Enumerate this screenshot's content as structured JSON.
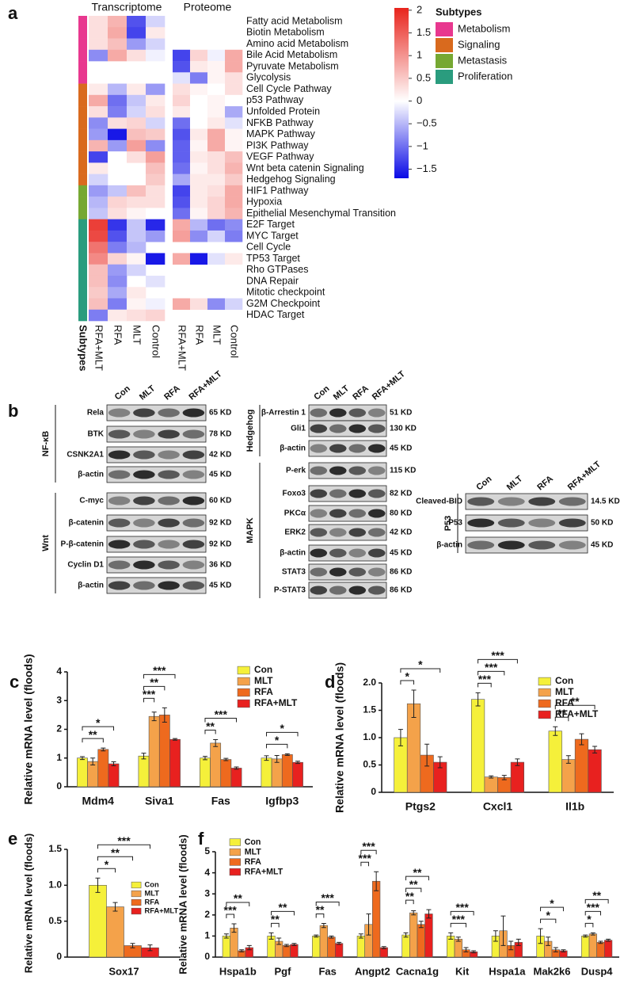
{
  "panel_labels": [
    "a",
    "b",
    "c",
    "d",
    "e",
    "f"
  ],
  "chart_data": [
    {
      "type": "heatmap",
      "column_groups": [
        "Transcriptome",
        "Proteome"
      ],
      "columns": [
        "RFA+MLT",
        "RFA",
        "MLT",
        "Control",
        "RFA+MLT",
        "RFA",
        "MLT",
        "Control"
      ],
      "subtype_label": "Subtypes",
      "rows": [
        "Fatty acid Metabolism",
        "Biotin Metabolism",
        "Amino acid Metabolism",
        "Bile Acid Metabolism",
        "Pyruvate Metabolism",
        "Glycolysis",
        "Cell Cycle Pathway",
        "p53 Pathway",
        "Unfolded Protein",
        "NFKB Pathway",
        "MAPK Pathway",
        "PI3K Pathway",
        "VEGF Pathway",
        "Wnt beta catenin Signaling",
        "Hedgehog Signaling",
        "HIF1 Pathway",
        "Hypoxia",
        "Epithelial Mesenchymal Transition",
        "E2F Target",
        "MYC Target",
        "Cell Cycle",
        "TP53 Target",
        "Rho GTPases",
        "DNA Repair",
        "Mitotic checkpoint",
        "G2M Checkpoint",
        "HDAC Target"
      ],
      "row_subtypes": [
        "Metabolism",
        "Metabolism",
        "Metabolism",
        "Metabolism",
        "Metabolism",
        "Metabolism",
        "Signaling",
        "Signaling",
        "Signaling",
        "Signaling",
        "Signaling",
        "Signaling",
        "Signaling",
        "Signaling",
        "Signaling",
        "Metastasis",
        "Metastasis",
        "Metastasis",
        "Proliferation",
        "Proliferation",
        "Proliferation",
        "Proliferation",
        "Proliferation",
        "Proliferation",
        "Proliferation",
        "Proliferation",
        "Proliferation"
      ],
      "values": [
        [
          0.3,
          0.7,
          -1.2,
          -0.3,
          null,
          null,
          null,
          null
        ],
        [
          0.3,
          0.8,
          -1.3,
          0.2,
          null,
          null,
          null,
          null
        ],
        [
          0.3,
          0.6,
          -0.7,
          -0.3,
          null,
          null,
          null,
          null
        ],
        [
          -0.8,
          0.8,
          0.3,
          -0.1,
          -1.3,
          0.4,
          -0.1,
          0.8
        ],
        [
          null,
          null,
          null,
          null,
          -1.2,
          0.2,
          0.1,
          0.8
        ],
        [
          null,
          null,
          null,
          null,
          -0.2,
          -0.9,
          0.1,
          0.3
        ],
        [
          0.2,
          -0.5,
          0.2,
          -0.7,
          0.3,
          0.1,
          0,
          0.3
        ],
        [
          0.8,
          -1.0,
          -0.4,
          0.2,
          0.4,
          0,
          0.1,
          0
        ],
        [
          0.3,
          -0.9,
          -0.3,
          0.3,
          0.2,
          0,
          0.1,
          -0.6
        ],
        [
          -0.8,
          0.3,
          0.4,
          -0.3,
          -1.0,
          0,
          0.2,
          -0.2
        ],
        [
          -0.7,
          -1.6,
          0.6,
          0.5,
          -1.2,
          0.2,
          0.8,
          0.1
        ],
        [
          0.7,
          -0.7,
          0.9,
          -0.8,
          -1.1,
          0.1,
          0.8,
          0.1
        ],
        [
          -1.3,
          0,
          0.3,
          0.9,
          -1.1,
          0.2,
          0.3,
          0.6
        ],
        [
          0.2,
          null,
          null,
          0.6,
          -1.0,
          0.1,
          0.3,
          0.7
        ],
        [
          -0.3,
          null,
          null,
          0.5,
          -0.6,
          0.2,
          0.2,
          0.5
        ],
        [
          -0.7,
          -0.4,
          0.6,
          0.3,
          -1.3,
          0.2,
          0.3,
          0.8
        ],
        [
          -0.5,
          0.4,
          0.3,
          0.3,
          -1.2,
          0.2,
          0.4,
          0.8
        ],
        [
          -0.4,
          0.3,
          0.1,
          0,
          -1.0,
          0.1,
          0.4,
          0.7
        ],
        [
          1.8,
          -1.4,
          -0.4,
          -1.5,
          0.8,
          -0.5,
          -1.0,
          -0.8
        ],
        [
          1.7,
          -1.2,
          -0.4,
          -0.7,
          0.9,
          -0.8,
          -0.3,
          -0.9
        ],
        [
          1.3,
          -0.9,
          -0.5,
          null,
          null,
          null,
          null,
          null
        ],
        [
          1.1,
          0.4,
          0.1,
          -1.6,
          0.8,
          -1.6,
          -0.2,
          0.2
        ],
        [
          0.6,
          -0.7,
          -0.3,
          null,
          null,
          null,
          null,
          null
        ],
        [
          0.6,
          -0.8,
          null,
          -0.2,
          null,
          null,
          null,
          null
        ],
        [
          0.5,
          -0.6,
          0.2,
          null,
          null,
          null,
          null,
          null
        ],
        [
          0.6,
          -0.9,
          0.1,
          -0.1,
          0.8,
          0.3,
          -0.8,
          -0.3
        ],
        [
          -0.9,
          0.2,
          0.3,
          0.4,
          null,
          null,
          null,
          null
        ]
      ],
      "colorbar": {
        "lim": [
          -1.7,
          2.05
        ],
        "colors": [
          "#0a0ae6",
          "#ffffff",
          "#e8241c"
        ],
        "ticks": [
          2,
          1.5,
          1,
          0.5,
          0,
          {
            "value": -0.5,
            "label": "−0.5"
          },
          {
            "value": -1,
            "label": "−1"
          },
          {
            "value": -1.5,
            "label": "−1.5"
          }
        ]
      },
      "subtypes": {
        "title": "Subtypes",
        "names": [
          "Metabolism",
          "Signaling",
          "Metastasis",
          "Proliferation"
        ],
        "colors": [
          "#e8388f",
          "#d96a1e",
          "#76a832",
          "#2a9c7e"
        ]
      }
    },
    {
      "type": "bar",
      "categories": [
        "Mdm4",
        "Siva1",
        "Fas",
        "Igfbp3"
      ],
      "ylabel": "Relative mRNA level (floods)",
      "ylim": [
        0,
        4
      ],
      "yticks": [
        0,
        1,
        2,
        3,
        4
      ],
      "legend": "top-right",
      "series": [
        {
          "name": "Con",
          "color": "#f5f03a",
          "values": [
            1.0,
            1.07,
            1.0,
            1.0
          ],
          "errors": [
            0.05,
            0.1,
            0.06,
            0.08
          ]
        },
        {
          "name": "MLT",
          "color": "#f4a24a",
          "values": [
            0.88,
            2.45,
            1.52,
            0.97
          ],
          "errors": [
            0.12,
            0.15,
            0.12,
            0.12
          ]
        },
        {
          "name": "RFA",
          "color": "#ee6a1e",
          "values": [
            1.3,
            2.5,
            0.95,
            1.12
          ],
          "errors": [
            0.05,
            0.25,
            0.04,
            0.03
          ]
        },
        {
          "name": "RFA+MLT",
          "color": "#e8211f",
          "values": [
            0.8,
            1.65,
            0.65,
            0.85
          ],
          "errors": [
            0.07,
            0.03,
            0.04,
            0.04
          ]
        }
      ],
      "significance": [
        {
          "category": 0,
          "from": 0,
          "to": 2,
          "label": "**"
        },
        {
          "category": 0,
          "from": 0,
          "to": 3,
          "label": "*"
        },
        {
          "category": 1,
          "from": 0,
          "to": 1,
          "label": "***"
        },
        {
          "category": 1,
          "from": 0,
          "to": 2,
          "label": "**"
        },
        {
          "category": 1,
          "from": 0,
          "to": 3,
          "label": "***"
        },
        {
          "category": 2,
          "from": 0,
          "to": 1,
          "label": "**"
        },
        {
          "category": 2,
          "from": 0,
          "to": 3,
          "label": "***"
        },
        {
          "category": 3,
          "from": 0,
          "to": 2,
          "label": "*"
        },
        {
          "category": 3,
          "from": 0,
          "to": 3,
          "label": "*"
        }
      ]
    },
    {
      "type": "bar",
      "categories": [
        "Ptgs2",
        "Cxcl1",
        "Il1b"
      ],
      "ylabel": "Relative mRNA level (floods)",
      "ylim": [
        0,
        2
      ],
      "yticks": [
        0,
        0.5,
        {
          "value": 1,
          "label": "1.0"
        },
        1.5,
        {
          "value": 2,
          "label": "2.0"
        }
      ],
      "legend": "top-right",
      "series": [
        {
          "name": "Con",
          "color": "#f5f03a",
          "values": [
            1.0,
            1.7,
            1.12
          ],
          "errors": [
            0.15,
            0.12,
            0.08
          ]
        },
        {
          "name": "MLT",
          "color": "#f4a24a",
          "values": [
            1.62,
            0.28,
            0.6
          ],
          "errors": [
            0.25,
            0.02,
            0.07
          ]
        },
        {
          "name": "RFA",
          "color": "#ee6a1e",
          "values": [
            0.68,
            0.27,
            0.97
          ],
          "errors": [
            0.2,
            0.04,
            0.1
          ]
        },
        {
          "name": "RFA+MLT",
          "color": "#e8211f",
          "values": [
            0.55,
            0.55,
            0.78
          ],
          "errors": [
            0.1,
            0.06,
            0.06
          ]
        }
      ],
      "significance": [
        {
          "category": 0,
          "from": 0,
          "to": 1,
          "label": "*"
        },
        {
          "category": 0,
          "from": 0,
          "to": 3,
          "label": "*"
        },
        {
          "category": 1,
          "from": 0,
          "to": 1,
          "label": "***"
        },
        {
          "category": 1,
          "from": 0,
          "to": 2,
          "label": "***"
        },
        {
          "category": 1,
          "from": 0,
          "to": 3,
          "label": "***"
        },
        {
          "category": 2,
          "from": 0,
          "to": 1,
          "label": "**"
        },
        {
          "category": 2,
          "from": 0,
          "to": 3,
          "label": "**"
        }
      ]
    },
    {
      "type": "bar",
      "categories": [
        "Sox17"
      ],
      "ylabel": "Relative mRNA level (floods)",
      "ylim": [
        0,
        1.5
      ],
      "yticks": [
        0,
        0.5,
        {
          "value": 1,
          "label": "1.0"
        },
        1.5
      ],
      "legend": "right",
      "series": [
        {
          "name": "Con",
          "color": "#f5f03a",
          "values": [
            1.0
          ],
          "errors": [
            0.1
          ]
        },
        {
          "name": "MLT",
          "color": "#f4a24a",
          "values": [
            0.7
          ],
          "errors": [
            0.06
          ]
        },
        {
          "name": "RFA",
          "color": "#ee6a1e",
          "values": [
            0.16
          ],
          "errors": [
            0.03
          ]
        },
        {
          "name": "RFA+MLT",
          "color": "#e8211f",
          "values": [
            0.13
          ],
          "errors": [
            0.04
          ]
        }
      ],
      "significance": [
        {
          "category": 0,
          "from": 0,
          "to": 1,
          "label": "*"
        },
        {
          "category": 0,
          "from": 0,
          "to": 2,
          "label": "**"
        },
        {
          "category": 0,
          "from": 0,
          "to": 3,
          "label": "***"
        }
      ]
    },
    {
      "type": "bar",
      "categories": [
        "Hspa1b",
        "Pgf",
        "Fas",
        "Angpt2",
        "Cacna1g",
        "Kit",
        "Hspa1a",
        "Mak2k6",
        "Dusp4"
      ],
      "ylabel": "Relative mRNA level (floods)",
      "ylim": [
        0,
        5
      ],
      "yticks": [
        0,
        1,
        2,
        3,
        4,
        5
      ],
      "legend": "top-left",
      "series": [
        {
          "name": "Con",
          "color": "#f5f03a",
          "values": [
            1.0,
            1.0,
            1.0,
            1.0,
            1.05,
            1.0,
            1.0,
            1.0,
            1.0
          ],
          "errors": [
            0.1,
            0.15,
            0.05,
            0.1,
            0.1,
            0.15,
            0.25,
            0.35,
            0.05
          ]
        },
        {
          "name": "MLT",
          "color": "#f4a24a",
          "values": [
            1.38,
            0.75,
            1.5,
            1.55,
            2.1,
            0.85,
            1.25,
            0.75,
            1.1
          ],
          "errors": [
            0.2,
            0.15,
            0.1,
            0.5,
            0.1,
            0.1,
            0.7,
            0.2,
            0.05
          ]
        },
        {
          "name": "RFA",
          "color": "#ee6a1e",
          "values": [
            0.3,
            0.55,
            0.95,
            3.6,
            1.55,
            0.35,
            0.55,
            0.35,
            0.7
          ],
          "errors": [
            0.05,
            0.05,
            0.05,
            0.45,
            0.15,
            0.1,
            0.2,
            0.1,
            0.05
          ]
        },
        {
          "name": "RFA+MLT",
          "color": "#e8211f",
          "values": [
            0.45,
            0.6,
            0.65,
            0.45,
            2.05,
            0.25,
            0.7,
            0.3,
            0.8
          ],
          "errors": [
            0.1,
            0.05,
            0.05,
            0.05,
            0.2,
            0.05,
            0.15,
            0.05,
            0.05
          ]
        }
      ],
      "significance": [
        {
          "category": 0,
          "from": 0,
          "to": 1,
          "label": "***"
        },
        {
          "category": 0,
          "from": 0,
          "to": 3,
          "label": "**"
        },
        {
          "category": 1,
          "from": 0,
          "to": 1,
          "label": "**"
        },
        {
          "category": 1,
          "from": 0,
          "to": 3,
          "label": "**"
        },
        {
          "category": 2,
          "from": 0,
          "to": 1,
          "label": "**"
        },
        {
          "category": 2,
          "from": 0,
          "to": 3,
          "label": "***"
        },
        {
          "category": 3,
          "from": 0,
          "to": 1,
          "label": "***"
        },
        {
          "category": 3,
          "from": 0,
          "to": 2,
          "label": "***"
        },
        {
          "category": 4,
          "from": 0,
          "to": 1,
          "label": "**"
        },
        {
          "category": 4,
          "from": 0,
          "to": 2,
          "label": "**"
        },
        {
          "category": 4,
          "from": 0,
          "to": 3,
          "label": "**"
        },
        {
          "category": 5,
          "from": 0,
          "to": 2,
          "label": "***"
        },
        {
          "category": 5,
          "from": 0,
          "to": 3,
          "label": "***"
        },
        {
          "category": 7,
          "from": 0,
          "to": 2,
          "label": "*"
        },
        {
          "category": 7,
          "from": 0,
          "to": 3,
          "label": "*"
        },
        {
          "category": 8,
          "from": 0,
          "to": 1,
          "label": "*"
        },
        {
          "category": 8,
          "from": 0,
          "to": 2,
          "label": "***"
        },
        {
          "category": 8,
          "from": 0,
          "to": 3,
          "label": "**"
        }
      ]
    }
  ],
  "blots": [
    {
      "lanes": [
        "Con",
        "MLT",
        "RFA",
        "RFA+MLT"
      ],
      "groups": [
        {
          "label": "NF-κB",
          "rows": [
            {
              "protein": "Rela",
              "size": "65 KD"
            },
            {
              "protein": "BTK",
              "size": "78 KD"
            },
            {
              "protein": "CSNK2A1",
              "size": "42 KD"
            },
            {
              "protein": "β-actin",
              "size": "45 KD"
            }
          ]
        },
        {
          "label": "Wnt",
          "rows": [
            {
              "protein": "C-myc",
              "size": "60 KD"
            },
            {
              "protein": "β-catenin",
              "size": "92 KD"
            },
            {
              "protein": "P-β-catenin",
              "size": "92 KD"
            },
            {
              "protein": "Cyclin D1",
              "size": "36 KD"
            },
            {
              "protein": "β-actin",
              "size": "45 KD"
            }
          ]
        }
      ]
    },
    {
      "lanes": [
        "Con",
        "MLT",
        "RFA",
        "RFA+MLT"
      ],
      "groups": [
        {
          "label": "Hedgehog",
          "rows": [
            {
              "protein": "β-Arrestin 1",
              "size": "51 KD"
            },
            {
              "protein": "Gli1",
              "size": "130 KD"
            },
            {
              "protein": "β-actin",
              "size": "45 KD"
            }
          ]
        },
        {
          "label": "MAPK",
          "rows": [
            {
              "protein": "P-erk",
              "size": "115 KD"
            },
            {
              "protein": "Foxo3",
              "size": "82 KD"
            },
            {
              "protein": "PKCα",
              "size": "80 KD"
            },
            {
              "protein": "ERK2",
              "size": "42 KD"
            },
            {
              "protein": "β-actin",
              "size": "45 KD"
            },
            {
              "protein": "STAT3",
              "size": "86 KD"
            },
            {
              "protein": "P-STAT3",
              "size": "86 KD"
            }
          ]
        }
      ]
    },
    {
      "lanes": [
        "Con",
        "MLT",
        "RFA",
        "RFA+MLT"
      ],
      "groups": [
        {
          "label": "P53",
          "rows": [
            {
              "protein": "Cleaved-BID",
              "size": "14.5 KD"
            },
            {
              "protein": "P53",
              "size": "50 KD"
            },
            {
              "protein": "β-actin",
              "size": "45 KD"
            }
          ]
        }
      ]
    }
  ]
}
